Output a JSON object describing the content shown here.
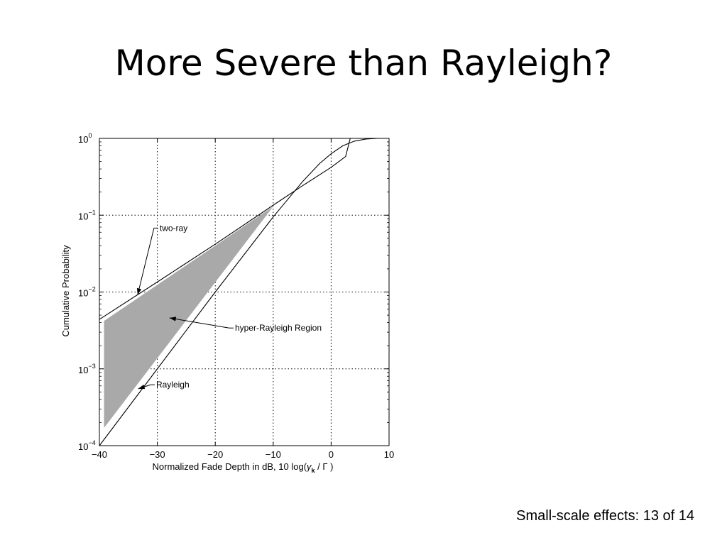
{
  "slide": {
    "title": "More Severe than Rayleigh?",
    "footer": "Small-scale effects: 13 of 14"
  },
  "chart_data": {
    "type": "line",
    "title": "",
    "xlabel_main": "Normalized Fade Depth in dB, 10 log(",
    "xlabel_gamma": "γ",
    "xlabel_sub": "k",
    "xlabel_tail": " / Γ )",
    "ylabel": "Cumulative Probability",
    "xlim": [
      -40,
      10
    ],
    "ylim_log10": [
      -4,
      0
    ],
    "y_scale": "log",
    "grid": "dotted",
    "x_ticks": [
      {
        "value": -40,
        "label": "−40"
      },
      {
        "value": -30,
        "label": "−30"
      },
      {
        "value": -20,
        "label": "−20"
      },
      {
        "value": -10,
        "label": "−10"
      },
      {
        "value": 0,
        "label": "0"
      },
      {
        "value": 10,
        "label": "10"
      }
    ],
    "y_ticks": [
      {
        "exp": 0,
        "base": "10",
        "sup": "0"
      },
      {
        "exp": -1,
        "base": "10",
        "sup": "−1"
      },
      {
        "exp": -2,
        "base": "10",
        "sup": "−2"
      },
      {
        "exp": -3,
        "base": "10",
        "sup": "−3"
      },
      {
        "exp": -4,
        "base": "10",
        "sup": "−4"
      }
    ],
    "series": [
      {
        "id": "two-ray",
        "points": [
          [
            -40,
            0.0044
          ],
          [
            -30,
            0.0135
          ],
          [
            -20,
            0.042
          ],
          [
            -10,
            0.135
          ],
          [
            -5,
            0.24
          ],
          [
            0,
            0.42
          ],
          [
            2.5,
            0.58
          ],
          [
            3.3,
            1.0
          ],
          [
            10,
            1.0
          ]
        ]
      },
      {
        "id": "rayleigh",
        "points": [
          [
            -40,
            0.0001
          ],
          [
            -30,
            0.001
          ],
          [
            -20,
            0.01
          ],
          [
            -10,
            0.095
          ],
          [
            -5,
            0.27
          ],
          [
            -2,
            0.47
          ],
          [
            0,
            0.63
          ],
          [
            2,
            0.8
          ],
          [
            4,
            0.92
          ],
          [
            6,
            0.98
          ],
          [
            8,
            1.0
          ],
          [
            10,
            1.0
          ]
        ]
      }
    ],
    "region": {
      "points": [
        [
          -39.2,
          0.0042
        ],
        [
          -10,
          0.13
        ],
        [
          -39.2,
          0.00017
        ]
      ]
    },
    "annotations": [
      {
        "id": "two-ray",
        "text": "two-ray",
        "label_at": [
          -29.6,
          0.068
        ],
        "arrow_to": [
          -33.4,
          0.0092
        ]
      },
      {
        "id": "hyper-rayleigh",
        "text": "hyper-Rayleigh Region",
        "label_at": [
          -16.6,
          0.0034
        ],
        "arrow_to": [
          -27.9,
          0.0046
        ]
      },
      {
        "id": "rayleigh",
        "text": "Rayleigh",
        "label_at": [
          -30.2,
          0.00062
        ],
        "arrow_to": [
          -33.3,
          0.00055
        ]
      }
    ]
  }
}
